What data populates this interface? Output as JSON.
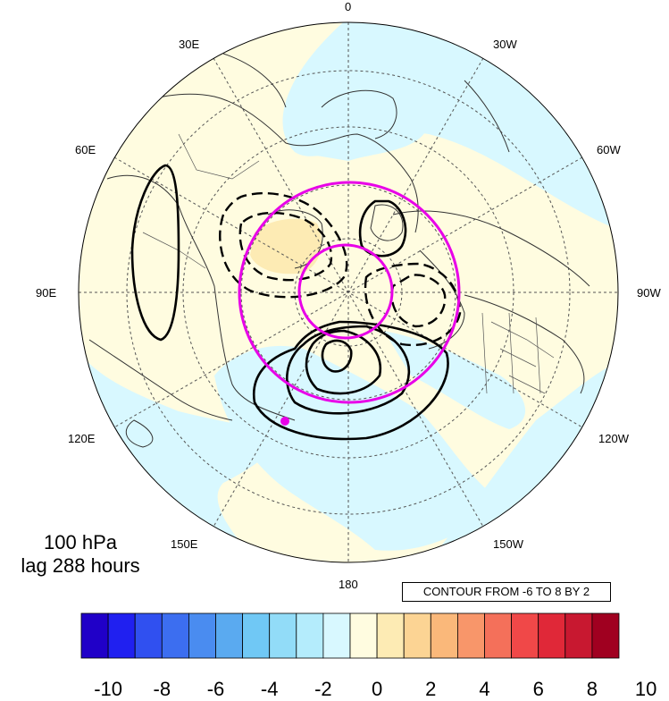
{
  "map_labels": {
    "top": "0",
    "bottom": "180",
    "right": "90W",
    "left": "90E",
    "l30e": "30E",
    "l30w": "30W",
    "l60e": "60E",
    "l60w": "60W",
    "l120e": "120E",
    "l120w": "120W",
    "l150e": "150E",
    "l150w": "150W"
  },
  "info": {
    "level": "100 hPa",
    "lag": "lag 288 hours",
    "contour_note": "CONTOUR FROM -6 TO 8 BY 2"
  },
  "colorbar": {
    "colors": [
      "#2000c8",
      "#2020f0",
      "#3050f0",
      "#3c6ef0",
      "#4a8cf0",
      "#5aaaf0",
      "#70c8f5",
      "#92dcf8",
      "#b4ecfc",
      "#d8f8ff",
      "#fffce0",
      "#fdebb4",
      "#fcd494",
      "#fab87a",
      "#f8966a",
      "#f4705a",
      "#f04848",
      "#e02838",
      "#c81830",
      "#a00020"
    ],
    "ticks": [
      "-10",
      "-8",
      "-6",
      "-4",
      "-2",
      "0",
      "2",
      "4",
      "6",
      "8",
      "10"
    ]
  },
  "colors": {
    "ocean_fill": "#d8f8ff",
    "pos_anomaly": "#fffce0",
    "strong_pos": "#fdebb4",
    "magenta": "#e800e8"
  }
}
